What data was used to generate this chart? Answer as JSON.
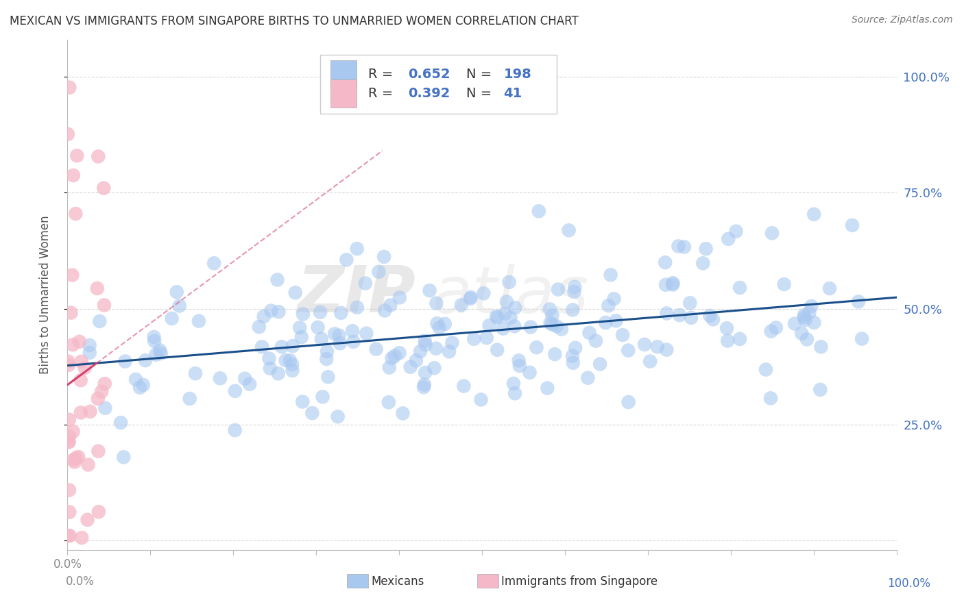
{
  "title": "MEXICAN VS IMMIGRANTS FROM SINGAPORE BIRTHS TO UNMARRIED WOMEN CORRELATION CHART",
  "source": "Source: ZipAtlas.com",
  "ylabel": "Births to Unmarried Women",
  "watermark_zip": "ZIP",
  "watermark_atlas": "atlas",
  "blue_R": "0.652",
  "blue_N": "198",
  "pink_R": "0.392",
  "pink_N": "41",
  "blue_color": "#a8c8f0",
  "pink_color": "#f5b8c8",
  "blue_line_color": "#1a4f8a",
  "pink_line_color": "#d44070",
  "grid_color": "#d0d0d0",
  "title_color": "#333333",
  "right_tick_color": "#4472c4",
  "legend_text_color": "#333333",
  "legend_value_color": "#4472c4",
  "xlim": [
    0.0,
    1.0
  ],
  "ylim": [
    -0.02,
    1.08
  ],
  "figsize": [
    14.06,
    8.92
  ],
  "dpi": 100
}
